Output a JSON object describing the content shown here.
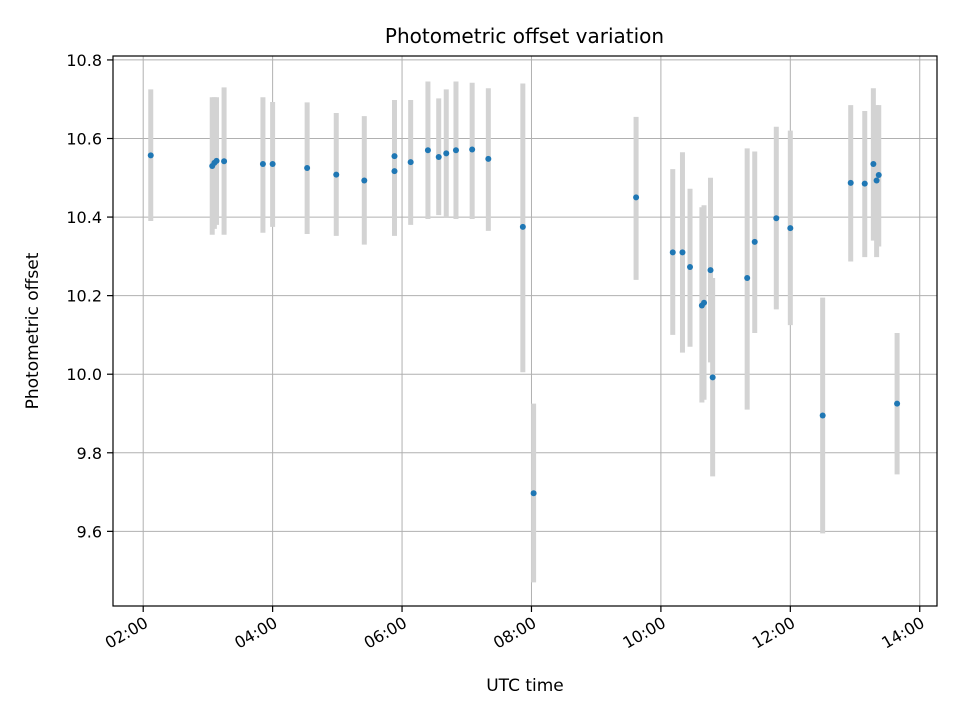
{
  "chart_data": {
    "type": "scatter",
    "title": "Photometric offset variation",
    "xlabel": "UTC time",
    "ylabel": "Photometric offset",
    "xlim": [
      "01:32",
      "14:16"
    ],
    "ylim": [
      9.41,
      10.81
    ],
    "x_ticks": [
      "02:00",
      "04:00",
      "06:00",
      "08:00",
      "10:00",
      "12:00",
      "14:00"
    ],
    "y_ticks": [
      "9.6",
      "9.8",
      "10.0",
      "10.2",
      "10.4",
      "10.6",
      "10.8"
    ],
    "grid": true,
    "colors": {
      "point": "#1f77b4",
      "errorbar": "#d3d3d3",
      "grid": "#b0b0b0"
    },
    "points": [
      {
        "t": "02:07",
        "y": 10.557,
        "lo": 10.39,
        "hi": 10.725
      },
      {
        "t": "03:04",
        "y": 10.53,
        "lo": 10.355,
        "hi": 10.705
      },
      {
        "t": "03:06",
        "y": 10.538,
        "lo": 10.37,
        "hi": 10.705
      },
      {
        "t": "03:08",
        "y": 10.543,
        "lo": 10.38,
        "hi": 10.705
      },
      {
        "t": "03:15",
        "y": 10.542,
        "lo": 10.355,
        "hi": 10.73
      },
      {
        "t": "03:51",
        "y": 10.535,
        "lo": 10.36,
        "hi": 10.705
      },
      {
        "t": "04:00",
        "y": 10.535,
        "lo": 10.375,
        "hi": 10.693
      },
      {
        "t": "04:32",
        "y": 10.525,
        "lo": 10.357,
        "hi": 10.692
      },
      {
        "t": "04:59",
        "y": 10.508,
        "lo": 10.352,
        "hi": 10.665
      },
      {
        "t": "05:25",
        "y": 10.493,
        "lo": 10.33,
        "hi": 10.657
      },
      {
        "t": "05:53",
        "y": 10.517,
        "lo": 10.352,
        "hi": 10.698
      },
      {
        "t": "05:53",
        "y": 10.555,
        "lo": 10.395,
        "hi": 10.698
      },
      {
        "t": "06:08",
        "y": 10.54,
        "lo": 10.38,
        "hi": 10.698
      },
      {
        "t": "06:24",
        "y": 10.57,
        "lo": 10.395,
        "hi": 10.745
      },
      {
        "t": "06:34",
        "y": 10.553,
        "lo": 10.405,
        "hi": 10.702
      },
      {
        "t": "06:41",
        "y": 10.562,
        "lo": 10.4,
        "hi": 10.725
      },
      {
        "t": "06:50",
        "y": 10.57,
        "lo": 10.395,
        "hi": 10.745
      },
      {
        "t": "07:05",
        "y": 10.572,
        "lo": 10.395,
        "hi": 10.742
      },
      {
        "t": "07:20",
        "y": 10.548,
        "lo": 10.365,
        "hi": 10.728
      },
      {
        "t": "07:52",
        "y": 10.375,
        "lo": 10.005,
        "hi": 10.74
      },
      {
        "t": "08:02",
        "y": 9.697,
        "lo": 9.47,
        "hi": 9.925
      },
      {
        "t": "09:37",
        "y": 10.45,
        "lo": 10.24,
        "hi": 10.655
      },
      {
        "t": "10:11",
        "y": 10.31,
        "lo": 10.1,
        "hi": 10.522
      },
      {
        "t": "10:20",
        "y": 10.31,
        "lo": 10.055,
        "hi": 10.565
      },
      {
        "t": "10:27",
        "y": 10.273,
        "lo": 10.07,
        "hi": 10.472
      },
      {
        "t": "10:38",
        "y": 10.175,
        "lo": 9.928,
        "hi": 10.425
      },
      {
        "t": "10:40",
        "y": 10.182,
        "lo": 9.935,
        "hi": 10.43
      },
      {
        "t": "10:46",
        "y": 10.265,
        "lo": 10.03,
        "hi": 10.5
      },
      {
        "t": "10:48",
        "y": 9.992,
        "lo": 9.74,
        "hi": 10.245
      },
      {
        "t": "11:20",
        "y": 10.245,
        "lo": 9.91,
        "hi": 10.575
      },
      {
        "t": "11:27",
        "y": 10.337,
        "lo": 10.105,
        "hi": 10.567
      },
      {
        "t": "11:47",
        "y": 10.397,
        "lo": 10.165,
        "hi": 10.63
      },
      {
        "t": "12:00",
        "y": 10.372,
        "lo": 10.125,
        "hi": 10.62
      },
      {
        "t": "12:30",
        "y": 9.895,
        "lo": 9.595,
        "hi": 10.195
      },
      {
        "t": "12:56",
        "y": 10.487,
        "lo": 10.287,
        "hi": 10.685
      },
      {
        "t": "13:09",
        "y": 10.485,
        "lo": 10.298,
        "hi": 10.67
      },
      {
        "t": "13:17",
        "y": 10.535,
        "lo": 10.34,
        "hi": 10.728
      },
      {
        "t": "13:20",
        "y": 10.493,
        "lo": 10.298,
        "hi": 10.685
      },
      {
        "t": "13:22",
        "y": 10.507,
        "lo": 10.325,
        "hi": 10.685
      },
      {
        "t": "13:39",
        "y": 9.925,
        "lo": 9.745,
        "hi": 10.105
      }
    ]
  }
}
